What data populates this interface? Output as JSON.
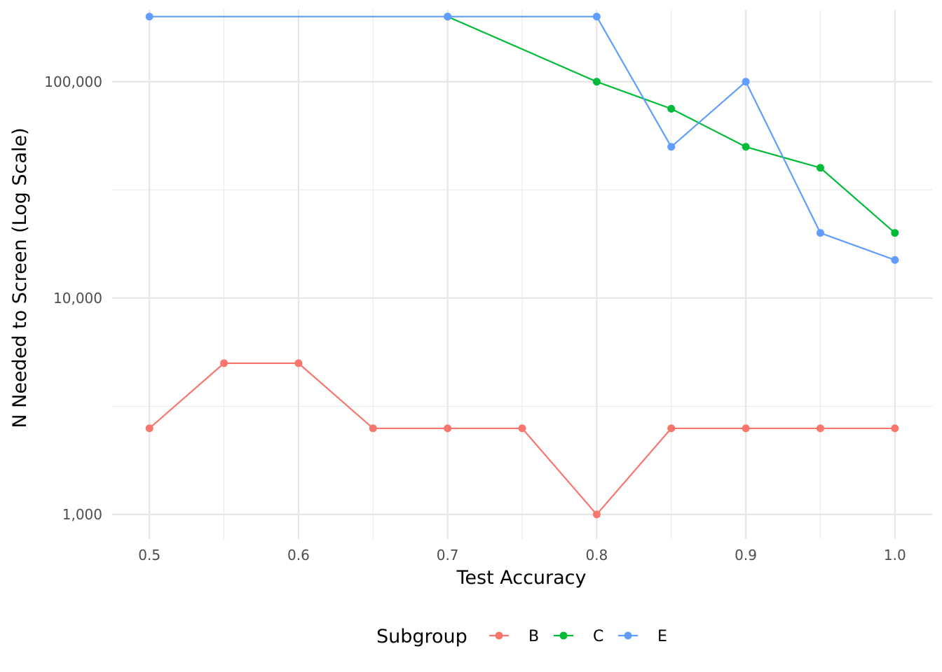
{
  "chart_data": {
    "type": "line",
    "xlabel": "Test Accuracy",
    "ylabel": "N Needed to Screen (Log Scale)",
    "y_scale": "log10",
    "x_ticks": [
      0.5,
      0.6,
      0.7,
      0.8,
      0.9,
      1.0
    ],
    "x_tick_labels": [
      "0.5",
      "0.6",
      "0.7",
      "0.8",
      "0.9",
      "1.0"
    ],
    "y_ticks": [
      1000,
      10000,
      100000
    ],
    "y_tick_labels": [
      "1,000",
      "10,000",
      "100,000"
    ],
    "xlim": [
      0.475,
      1.025
    ],
    "ylim": [
      770,
      215000
    ],
    "grid": true,
    "legend_title": "Subgroup",
    "legend_position": "bottom",
    "series": [
      {
        "name": "B",
        "color": "#F8766D",
        "points": [
          [
            0.5,
            2500
          ],
          [
            0.55,
            5000
          ],
          [
            0.6,
            5000
          ],
          [
            0.65,
            2500
          ],
          [
            0.7,
            2500
          ],
          [
            0.75,
            2500
          ],
          [
            0.8,
            1000
          ],
          [
            0.85,
            2500
          ],
          [
            0.9,
            2500
          ],
          [
            0.95,
            2500
          ],
          [
            1.0,
            2500
          ]
        ]
      },
      {
        "name": "C",
        "color": "#00BA38",
        "points": [
          [
            0.7,
            200000
          ],
          [
            0.8,
            100000
          ],
          [
            0.85,
            75000
          ],
          [
            0.9,
            50000
          ],
          [
            0.95,
            40000
          ],
          [
            1.0,
            20000
          ]
        ]
      },
      {
        "name": "E",
        "color": "#619CFF",
        "points": [
          [
            0.5,
            200000
          ],
          [
            0.7,
            200000
          ],
          [
            0.8,
            200000
          ],
          [
            0.85,
            50000
          ],
          [
            0.9,
            100000
          ],
          [
            0.95,
            20000
          ],
          [
            1.0,
            15000
          ]
        ]
      }
    ]
  }
}
